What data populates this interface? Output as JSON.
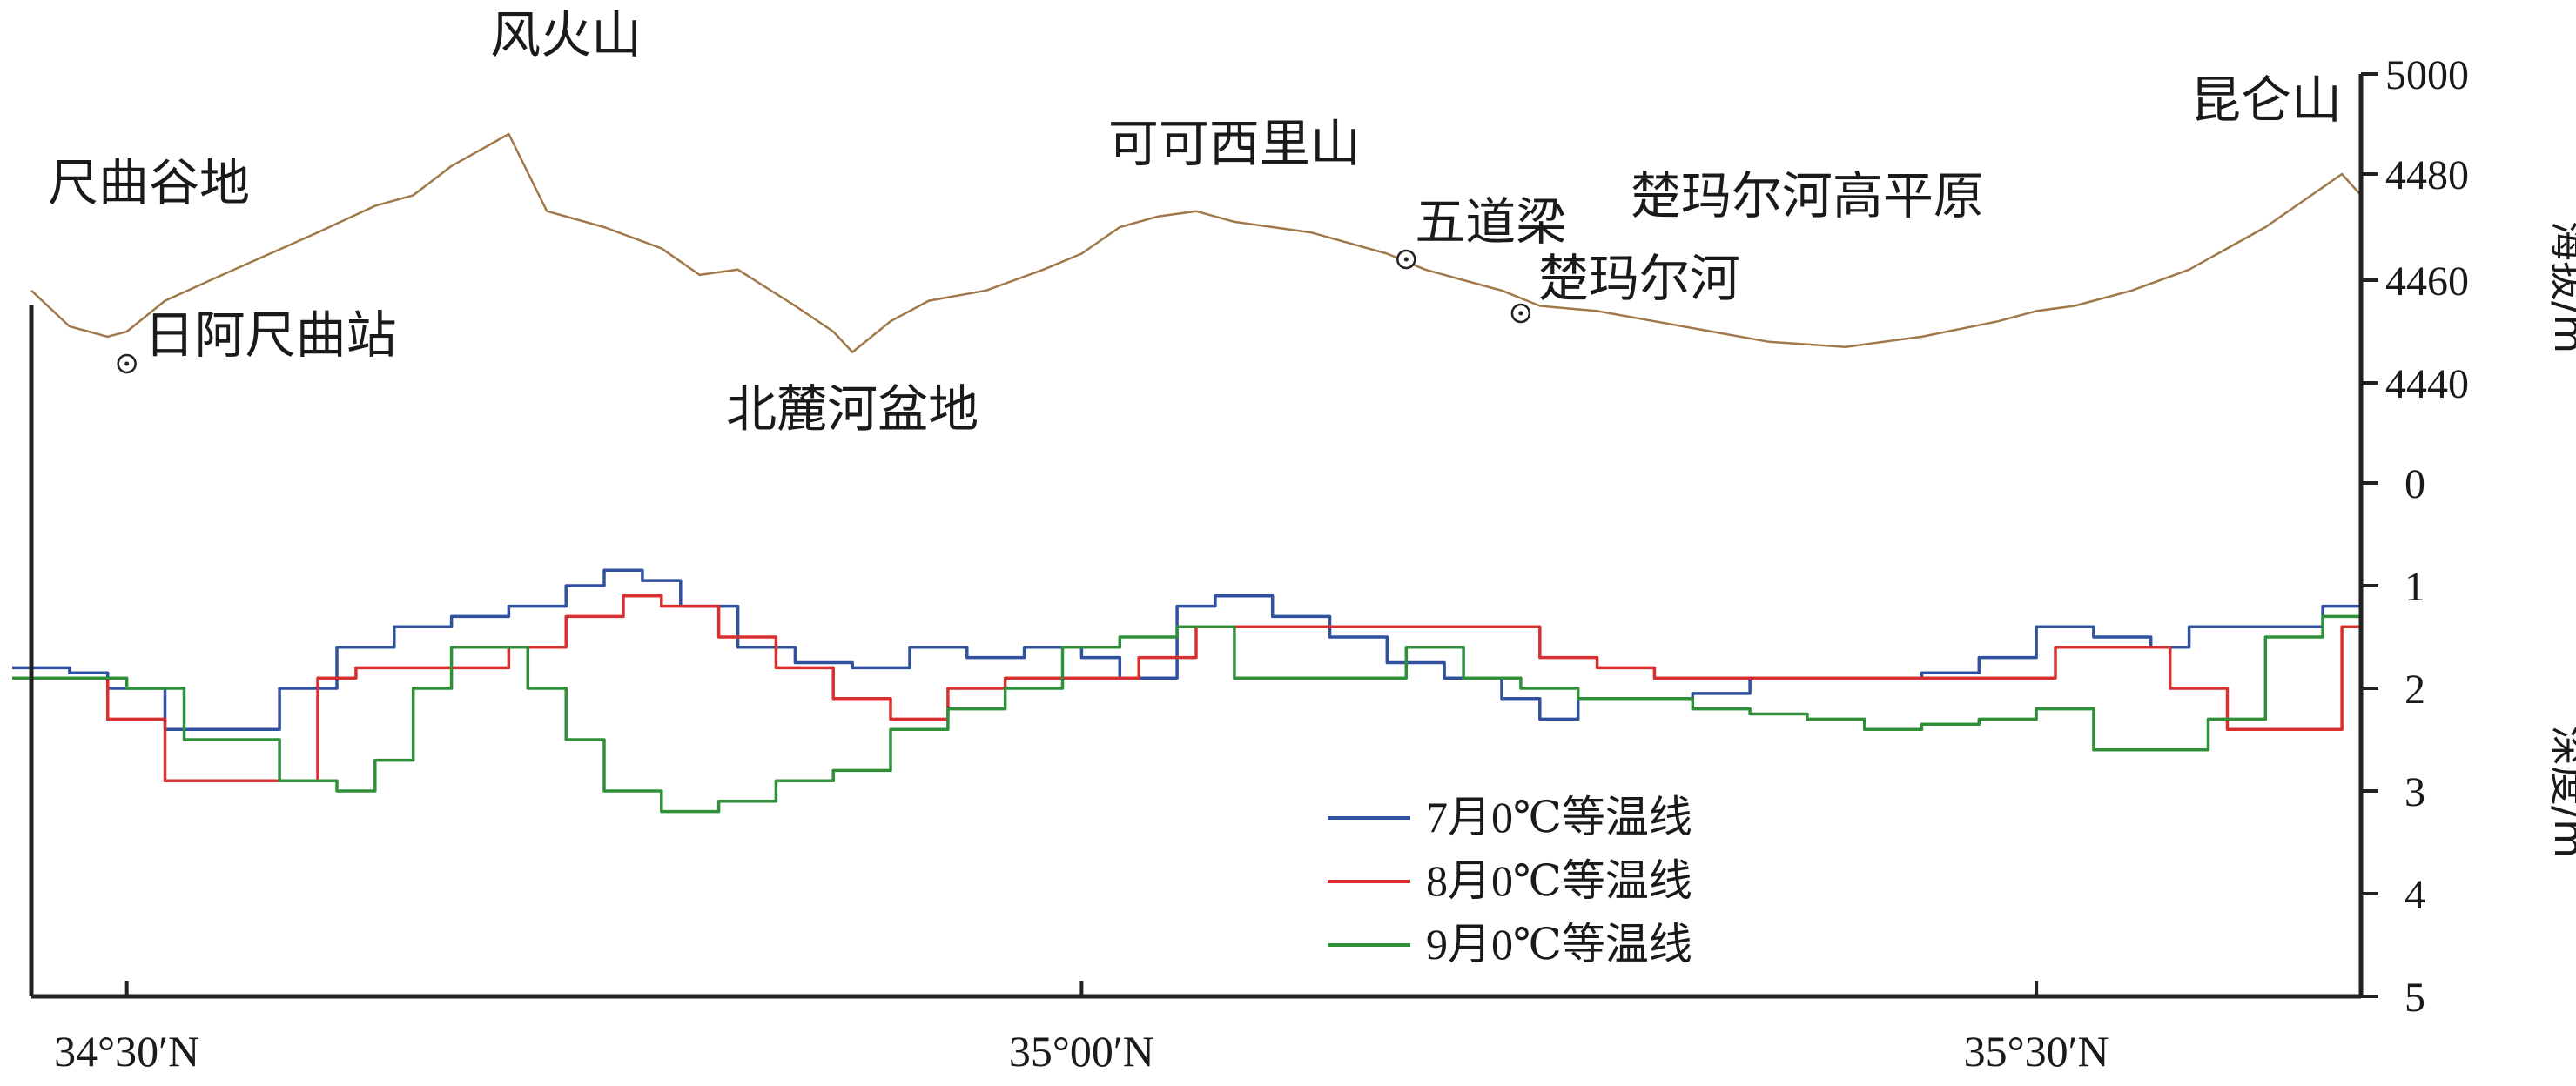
{
  "chart_data": {
    "type": "line",
    "x_axis": {
      "ticks": [
        "34°30′N",
        "35°00′N",
        "35°30′N"
      ],
      "tick_values": [
        34.5,
        35.0,
        35.5
      ],
      "range": [
        34.45,
        35.67
      ]
    },
    "elevation_axis": {
      "label": "海拔/m",
      "ticks": [
        "4440",
        "4460",
        "4480",
        "5000"
      ],
      "tick_values": [
        4440,
        4460,
        4480,
        5000
      ],
      "side": "right"
    },
    "depth_axis": {
      "label": "深度/m",
      "ticks": [
        "0",
        "1",
        "2",
        "3",
        "4",
        "5"
      ],
      "tick_values": [
        0,
        1,
        2,
        3,
        4,
        5
      ],
      "range": [
        0,
        5
      ],
      "inverted": true,
      "side": "right"
    },
    "terrain": {
      "color": "#a0784a",
      "x": [
        34.45,
        34.47,
        34.49,
        34.5,
        34.52,
        34.55,
        34.6,
        34.63,
        34.65,
        34.67,
        34.7,
        34.72,
        34.75,
        34.78,
        34.8,
        34.82,
        34.85,
        34.87,
        34.88,
        34.9,
        34.92,
        34.95,
        34.98,
        35.0,
        35.02,
        35.04,
        35.06,
        35.08,
        35.1,
        35.12,
        35.14,
        35.16,
        35.18,
        35.2,
        35.22,
        35.24,
        35.27,
        35.3,
        35.33,
        35.36,
        35.4,
        35.44,
        35.48,
        35.5,
        35.52,
        35.55,
        35.58,
        35.6,
        35.62,
        35.64,
        35.66,
        35.67
      ],
      "elevation": [
        4458,
        4451,
        4449,
        4450,
        4456,
        4461,
        4469,
        4474,
        4476,
        4482,
        4490,
        4473,
        4470,
        4466,
        4461,
        4462,
        4455,
        4450,
        4446,
        4452,
        4456,
        4458,
        4462,
        4465,
        4470,
        4472,
        4473,
        4471,
        4470,
        4469,
        4467,
        4465,
        4462,
        4460,
        4458,
        4455,
        4454,
        4452,
        4450,
        4448,
        4447,
        4449,
        4452,
        4454,
        4455,
        4458,
        4462,
        4466,
        4470,
        4475,
        4480,
        4476
      ]
    },
    "places": [
      {
        "name": "尺曲谷地",
        "x": 34.45,
        "marker": false
      },
      {
        "name": "日阿尺曲站",
        "x": 34.5,
        "marker": true
      },
      {
        "name": "风火山",
        "x": 34.73,
        "marker": false
      },
      {
        "name": "北麓河盆地",
        "x": 34.88,
        "marker": false
      },
      {
        "name": "可可西里山",
        "x": 35.08,
        "marker": false
      },
      {
        "name": "五道梁",
        "x": 35.17,
        "marker": true
      },
      {
        "name": "楚玛尔河",
        "x": 35.23,
        "marker": true
      },
      {
        "name": "楚玛尔河高平原",
        "x": 35.38,
        "marker": false
      },
      {
        "name": "昆仑山",
        "x": 35.66,
        "marker": false
      }
    ],
    "series": [
      {
        "name": "7月0℃等温线",
        "color": "#3050a0",
        "x": [
          34.44,
          34.47,
          34.49,
          34.52,
          34.55,
          34.58,
          34.61,
          34.64,
          34.67,
          34.7,
          34.73,
          34.75,
          34.77,
          34.79,
          34.82,
          34.85,
          34.88,
          34.91,
          34.94,
          34.97,
          35.0,
          35.02,
          35.05,
          35.07,
          35.1,
          35.13,
          35.16,
          35.19,
          35.22,
          35.24,
          35.26,
          35.29,
          35.32,
          35.35,
          35.38,
          35.41,
          35.44,
          35.47,
          35.5,
          35.53,
          35.56,
          35.58,
          35.6,
          35.62,
          35.65,
          35.67
        ],
        "depth": [
          1.8,
          1.85,
          2.0,
          2.4,
          2.4,
          2.0,
          1.6,
          1.4,
          1.3,
          1.2,
          1.0,
          0.85,
          0.95,
          1.2,
          1.6,
          1.75,
          1.8,
          1.6,
          1.7,
          1.6,
          1.7,
          1.9,
          1.2,
          1.1,
          1.3,
          1.5,
          1.75,
          1.9,
          2.1,
          2.3,
          2.1,
          2.1,
          2.05,
          1.9,
          1.9,
          1.9,
          1.85,
          1.7,
          1.4,
          1.5,
          1.6,
          1.4,
          1.4,
          1.4,
          1.2,
          1.2
        ]
      },
      {
        "name": "8月0℃等温线",
        "color": "#d83030",
        "x": [
          34.44,
          34.47,
          34.49,
          34.52,
          34.55,
          34.58,
          34.6,
          34.62,
          34.64,
          34.67,
          34.7,
          34.73,
          34.76,
          34.78,
          34.81,
          34.84,
          34.87,
          34.9,
          34.93,
          34.96,
          35.0,
          35.03,
          35.06,
          35.09,
          35.12,
          35.15,
          35.18,
          35.21,
          35.24,
          35.27,
          35.3,
          35.33,
          35.36,
          35.39,
          35.42,
          35.45,
          35.48,
          35.51,
          35.54,
          35.57,
          35.6,
          35.63,
          35.66,
          35.67
        ],
        "depth": [
          1.9,
          1.9,
          2.3,
          2.9,
          2.9,
          2.9,
          1.9,
          1.8,
          1.8,
          1.8,
          1.6,
          1.3,
          1.1,
          1.2,
          1.5,
          1.8,
          2.1,
          2.3,
          2.0,
          1.9,
          1.9,
          1.7,
          1.4,
          1.4,
          1.4,
          1.4,
          1.4,
          1.4,
          1.7,
          1.8,
          1.9,
          1.9,
          1.9,
          1.9,
          1.9,
          1.9,
          1.9,
          1.6,
          1.6,
          2.0,
          2.4,
          2.4,
          1.4,
          1.0
        ]
      },
      {
        "name": "9月0℃等温线",
        "color": "#30903a",
        "x": [
          34.44,
          34.47,
          34.5,
          34.53,
          34.55,
          34.58,
          34.61,
          34.63,
          34.65,
          34.67,
          34.69,
          34.71,
          34.73,
          34.75,
          34.78,
          34.81,
          34.84,
          34.87,
          34.9,
          34.93,
          34.96,
          34.99,
          35.02,
          35.05,
          35.08,
          35.11,
          35.14,
          35.17,
          35.2,
          35.23,
          35.26,
          35.29,
          35.32,
          35.35,
          35.38,
          35.41,
          35.44,
          35.47,
          35.5,
          35.53,
          35.56,
          35.59,
          35.62,
          35.65,
          35.67
        ],
        "depth": [
          1.9,
          1.9,
          2.0,
          2.5,
          2.5,
          2.9,
          3.0,
          2.7,
          2.0,
          1.6,
          1.6,
          2.0,
          2.5,
          3.0,
          3.2,
          3.1,
          2.9,
          2.8,
          2.4,
          2.2,
          2.0,
          1.6,
          1.5,
          1.4,
          1.9,
          1.9,
          1.9,
          1.6,
          1.9,
          2.0,
          2.1,
          2.1,
          2.2,
          2.25,
          2.3,
          2.4,
          2.35,
          2.3,
          2.2,
          2.6,
          2.6,
          2.3,
          1.5,
          1.3,
          1.0
        ]
      }
    ],
    "legend": {
      "position": "bottom-center",
      "entries": [
        "7月0℃等温线",
        "8月0℃等温线",
        "9月0℃等温线"
      ]
    }
  }
}
